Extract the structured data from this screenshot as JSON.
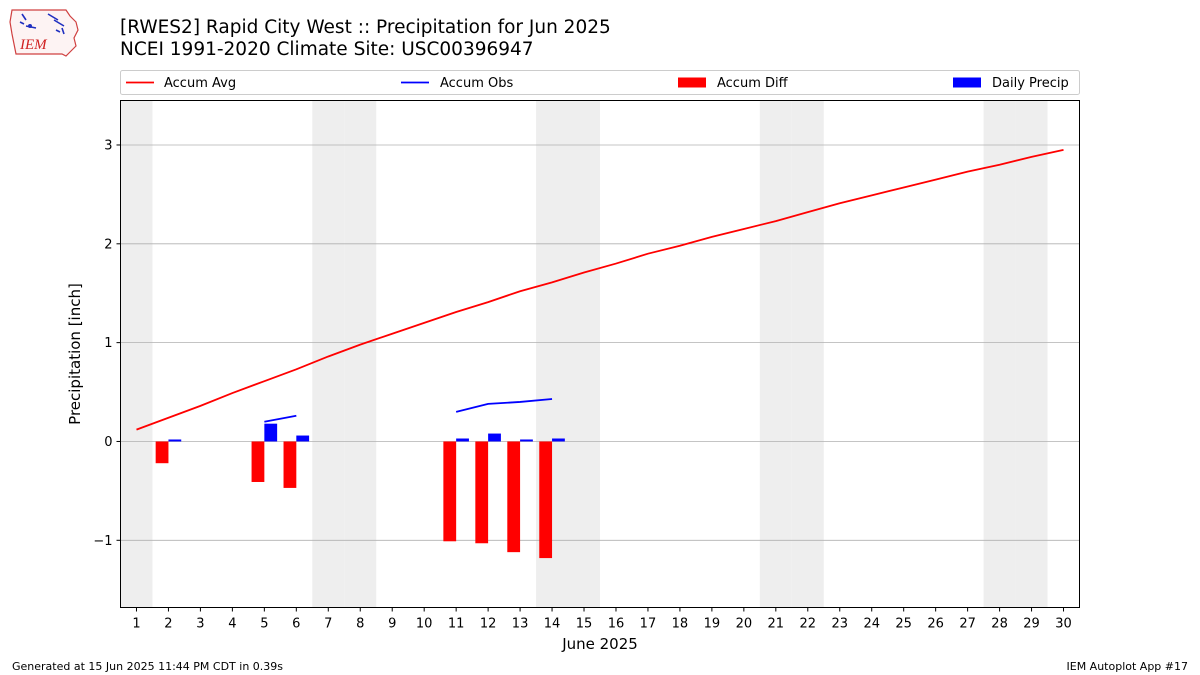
{
  "header": {
    "title_line1": "[RWES2] Rapid City West :: Precipitation for Jun 2025",
    "title_line2": "NCEI 1991-2020 Climate Site: USC00396947"
  },
  "logo": {
    "text": "IEM"
  },
  "footer": {
    "generated": "Generated at 15 Jun 2025 11:44 PM CDT in 0.39s",
    "app": "IEM Autoplot App #17"
  },
  "colors": {
    "accum_avg": "#ff0000",
    "accum_obs": "#0000ff",
    "accum_diff": "#ff0000",
    "daily_precip": "#0000ff",
    "weekend_shade": "#eeeeee",
    "grid": "#b0b0b0"
  },
  "chart_data": {
    "type": "bar",
    "xlabel": "June 2025",
    "ylabel": "Precipitation [inch]",
    "xlim": [
      0.5,
      30.5
    ],
    "ylim": [
      -1.68,
      3.45
    ],
    "yticks": [
      -1,
      0,
      1,
      2,
      3
    ],
    "ytick_labels": [
      "−1",
      "0",
      "1",
      "2",
      "3"
    ],
    "days": [
      1,
      2,
      3,
      4,
      5,
      6,
      7,
      8,
      9,
      10,
      11,
      12,
      13,
      14,
      15,
      16,
      17,
      18,
      19,
      20,
      21,
      22,
      23,
      24,
      25,
      26,
      27,
      28,
      29,
      30
    ],
    "weekend_days": [
      1,
      7,
      8,
      14,
      15,
      21,
      22,
      28,
      29
    ],
    "grid": "horizontal",
    "legend": {
      "placement": "top, horizontal above plot",
      "entries": [
        "Accum Avg",
        "Accum Obs",
        "Accum Diff",
        "Daily Precip"
      ]
    },
    "series": [
      {
        "name": "Accum Avg",
        "type": "line",
        "x": [
          1,
          2,
          3,
          4,
          5,
          6,
          7,
          8,
          9,
          10,
          11,
          12,
          13,
          14,
          15,
          16,
          17,
          18,
          19,
          20,
          21,
          22,
          23,
          24,
          25,
          26,
          27,
          28,
          29,
          30
        ],
        "values": [
          0.12,
          0.24,
          0.36,
          0.49,
          0.61,
          0.73,
          0.86,
          0.98,
          1.09,
          1.2,
          1.31,
          1.41,
          1.52,
          1.61,
          1.71,
          1.8,
          1.9,
          1.98,
          2.07,
          2.15,
          2.23,
          2.32,
          2.41,
          2.49,
          2.57,
          2.65,
          2.73,
          2.8,
          2.88,
          2.95
        ]
      },
      {
        "name": "Accum Obs",
        "type": "line-segments",
        "segments": [
          {
            "x": [
              5,
              6
            ],
            "values": [
              0.2,
              0.26
            ]
          },
          {
            "x": [
              11,
              12,
              13,
              14
            ],
            "values": [
              0.3,
              0.38,
              0.4,
              0.43
            ]
          }
        ]
      },
      {
        "name": "Accum Diff",
        "type": "bar",
        "x": [
          2,
          5,
          6,
          11,
          12,
          13,
          14
        ],
        "values": [
          -0.22,
          -0.41,
          -0.47,
          -1.01,
          -1.03,
          -1.12,
          -1.18
        ]
      },
      {
        "name": "Daily Precip",
        "type": "bar",
        "x": [
          2,
          5,
          6,
          11,
          12,
          13,
          14
        ],
        "values": [
          0.02,
          0.18,
          0.06,
          0.03,
          0.08,
          0.02,
          0.03
        ]
      }
    ]
  }
}
